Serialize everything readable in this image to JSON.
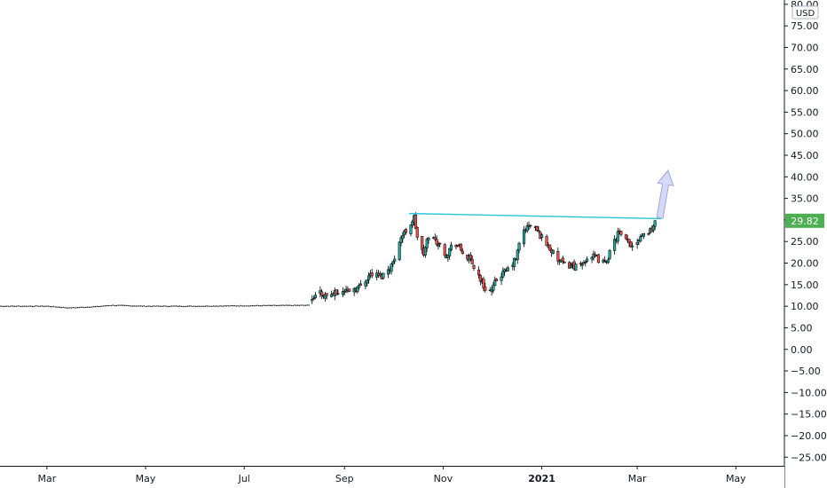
{
  "chart_data": {
    "type": "candlestick",
    "currency": "USD",
    "last_price": "29.82",
    "y_axis": {
      "range": [
        -27,
        81
      ],
      "ticks": [
        "80.00",
        "75.00",
        "70.00",
        "65.00",
        "60.00",
        "55.00",
        "50.00",
        "45.00",
        "40.00",
        "35.00",
        "30.00",
        "25.00",
        "20.00",
        "15.00",
        "10.00",
        "5.00",
        "0.00",
        "−10.00",
        "−15.00",
        "−20.00",
        "−25.00"
      ],
      "tick_values": [
        80,
        75,
        70,
        65,
        60,
        55,
        50,
        45,
        40,
        35,
        30,
        25,
        20,
        15,
        10,
        5,
        0,
        -10,
        -15,
        -20,
        -25
      ],
      "minus_five_label": "−5.00"
    },
    "x_axis": {
      "range": [
        "2020-02-01",
        "2021-05-31"
      ],
      "ticks": [
        {
          "date": "2020-03-01",
          "label": "Mar",
          "bold": false
        },
        {
          "date": "2020-05-01",
          "label": "May",
          "bold": false
        },
        {
          "date": "2020-07-01",
          "label": "Jul",
          "bold": false
        },
        {
          "date": "2020-09-01",
          "label": "Sep",
          "bold": false
        },
        {
          "date": "2020-11-01",
          "label": "Nov",
          "bold": false
        },
        {
          "date": "2021-01-01",
          "label": "2021",
          "bold": true
        },
        {
          "date": "2021-03-01",
          "label": "Mar",
          "bold": false
        },
        {
          "date": "2021-05-01",
          "label": "May",
          "bold": false
        }
      ]
    },
    "flat_segment": {
      "start": "2020-02-01",
      "end": "2020-08-10",
      "points": [
        [
          "2020-02-01",
          10.0
        ],
        [
          "2020-03-01",
          10.0
        ],
        [
          "2020-03-15",
          9.6
        ],
        [
          "2020-04-01",
          9.9
        ],
        [
          "2020-04-10",
          10.2
        ],
        [
          "2020-05-01",
          10.0
        ],
        [
          "2020-06-01",
          10.0
        ],
        [
          "2020-07-01",
          10.1
        ],
        [
          "2020-08-10",
          10.2
        ]
      ]
    },
    "price_path": [
      [
        "2020-08-12",
        11.0
      ],
      [
        "2020-08-16",
        13.5
      ],
      [
        "2020-08-20",
        12.5
      ],
      [
        "2020-08-27",
        13.0
      ],
      [
        "2020-09-03",
        13.8
      ],
      [
        "2020-09-10",
        14.5
      ],
      [
        "2020-09-17",
        17.5
      ],
      [
        "2020-09-24",
        17.0
      ],
      [
        "2020-10-01",
        20.0
      ],
      [
        "2020-10-05",
        25.5
      ],
      [
        "2020-10-09",
        27.5
      ],
      [
        "2020-10-14",
        30.5
      ],
      [
        "2020-10-17",
        24.0
      ],
      [
        "2020-10-20",
        22.0
      ],
      [
        "2020-10-23",
        26.5
      ],
      [
        "2020-10-28",
        25.0
      ],
      [
        "2020-11-03",
        22.0
      ],
      [
        "2020-11-08",
        25.0
      ],
      [
        "2020-11-13",
        22.5
      ],
      [
        "2020-11-18",
        20.5
      ],
      [
        "2020-11-22",
        18.0
      ],
      [
        "2020-11-26",
        14.5
      ],
      [
        "2020-12-01",
        13.5
      ],
      [
        "2020-12-05",
        17.0
      ],
      [
        "2020-12-10",
        18.0
      ],
      [
        "2020-12-16",
        21.0
      ],
      [
        "2020-12-20",
        27.5
      ],
      [
        "2020-12-26",
        29.0
      ],
      [
        "2021-01-01",
        26.0
      ],
      [
        "2021-01-05",
        24.0
      ],
      [
        "2021-01-10",
        21.0
      ],
      [
        "2021-01-15",
        19.5
      ],
      [
        "2021-01-20",
        19.5
      ],
      [
        "2021-01-25",
        19.0
      ],
      [
        "2021-01-30",
        22.0
      ],
      [
        "2021-02-04",
        21.0
      ],
      [
        "2021-02-09",
        20.0
      ],
      [
        "2021-02-13",
        23.0
      ],
      [
        "2021-02-17",
        27.0
      ],
      [
        "2021-02-22",
        25.0
      ],
      [
        "2021-02-27",
        24.0
      ],
      [
        "2021-03-03",
        26.5
      ],
      [
        "2021-03-07",
        27.0
      ],
      [
        "2021-03-10",
        28.0
      ],
      [
        "2021-03-13",
        29.82
      ]
    ],
    "resistance_line": {
      "start": [
        "2020-10-11",
        31.5
      ],
      "end": [
        "2021-03-16",
        30.3
      ]
    },
    "arrow_annotation": {
      "start": [
        "2021-03-15",
        30.5
      ],
      "end": [
        "2021-03-20",
        41.5
      ]
    },
    "colors": {
      "up": "#26a69a",
      "down": "#ef5350",
      "wick": "#000000",
      "flat_line": "#131722",
      "resistance": "#26c6da",
      "arrow": "#b3b9f5",
      "arrow_stroke": "#9fa8da",
      "price_badge": "#4caf50",
      "axis": "#131722"
    }
  }
}
